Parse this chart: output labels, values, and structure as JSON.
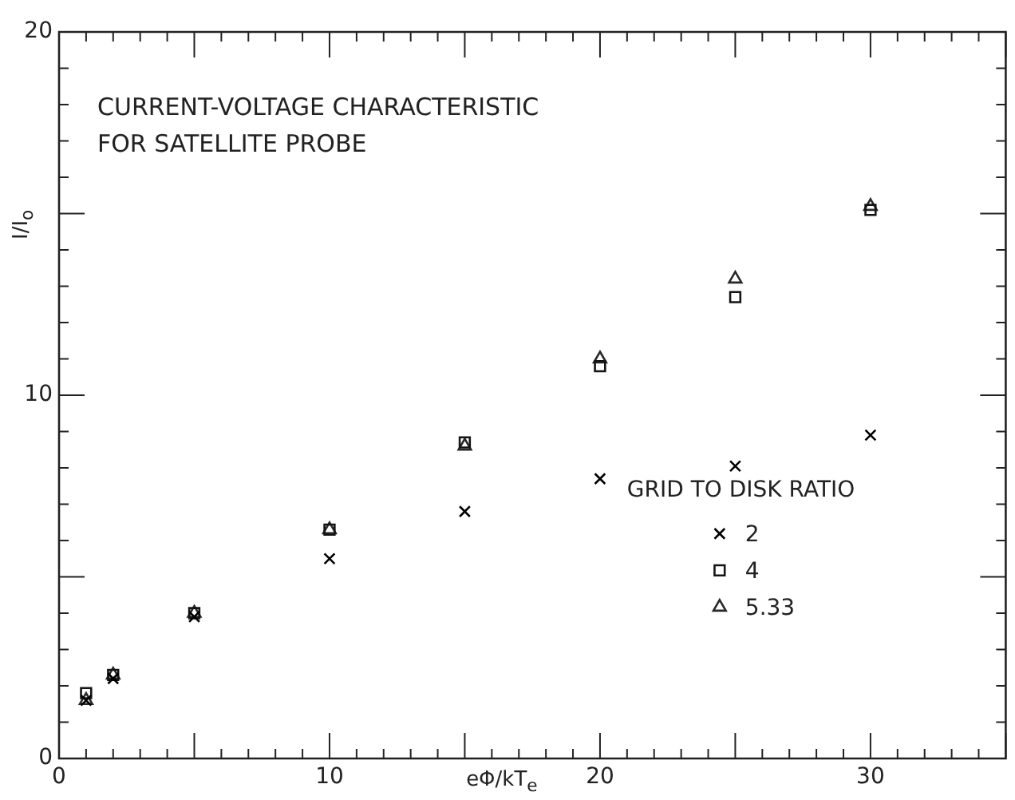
{
  "chart_data": {
    "type": "scatter",
    "title": "CURRENT-VOLTAGE CHARACTERISTIC\nFOR SATELLITE PROBE",
    "xlabel": "eΦ/kT$_{e}$",
    "ylabel": "I/I$_{o}$",
    "legend_title": "GRID TO DISK RATIO",
    "legend": "bottom right",
    "grid": false,
    "x": [
      1,
      2,
      5,
      10,
      15,
      20,
      25,
      30
    ],
    "series": [
      {
        "name": "2",
        "color": "#000000",
        "marker": "cross",
        "values": [
          1.6,
          2.2,
          3.9,
          5.5,
          6.8,
          7.7,
          8.05,
          8.9
        ]
      },
      {
        "name": "4",
        "color": "#141414",
        "marker": "square",
        "values": [
          1.8,
          2.3,
          4.0,
          6.3,
          8.7,
          10.8,
          12.7,
          15.1
        ]
      },
      {
        "name": "5.33",
        "color": "#282828",
        "marker": "triangle",
        "values": [
          1.6,
          2.3,
          4.0,
          6.3,
          8.6,
          11.0,
          13.2,
          15.2
        ]
      }
    ],
    "xlim": [
      0,
      35
    ],
    "xticks": [
      0,
      {
        "value": 1,
        "label": null
      },
      {
        "value": 2,
        "label": null
      },
      {
        "value": 3,
        "label": null
      },
      {
        "value": 4,
        "label": null
      },
      {
        "value": 5,
        "label": null
      },
      {
        "value": 6,
        "label": null
      },
      {
        "value": 7,
        "label": null
      },
      {
        "value": 8,
        "label": null
      },
      {
        "value": 9,
        "label": null
      },
      10,
      {
        "value": 11,
        "label": null
      },
      {
        "value": 12,
        "label": null
      },
      {
        "value": 13,
        "label": null
      },
      {
        "value": 14,
        "label": null
      },
      {
        "value": 15,
        "label": null
      },
      {
        "value": 16,
        "label": null
      },
      {
        "value": 17,
        "label": null
      },
      {
        "value": 18,
        "label": null
      },
      {
        "value": 19,
        "label": null
      },
      20,
      {
        "value": 21,
        "label": null
      },
      {
        "value": 22,
        "label": null
      },
      {
        "value": 23,
        "label": null
      },
      {
        "value": 24,
        "label": null
      },
      {
        "value": 25,
        "label": null
      },
      {
        "value": 26,
        "label": null
      },
      {
        "value": 27,
        "label": null
      },
      {
        "value": 28,
        "label": null
      },
      {
        "value": 29,
        "label": null
      },
      30,
      {
        "value": 31,
        "label": null
      },
      {
        "value": 32,
        "label": null
      },
      {
        "value": 33,
        "label": null
      },
      {
        "value": 34,
        "label": null
      },
      {
        "value": 35,
        "label": null
      }
    ],
    "ylim": [
      0,
      20
    ],
    "yticks": [
      0,
      {
        "value": 1,
        "label": null
      },
      {
        "value": 2,
        "label": null
      },
      {
        "value": 3,
        "label": null
      },
      {
        "value": 4,
        "label": null
      },
      {
        "value": 5,
        "label": null
      },
      {
        "value": 6,
        "label": null
      },
      {
        "value": 7,
        "label": null
      },
      {
        "value": 8,
        "label": null
      },
      {
        "value": 9,
        "label": null
      },
      10,
      {
        "value": 11,
        "label": null
      },
      {
        "value": 12,
        "label": null
      },
      {
        "value": 13,
        "label": null
      },
      {
        "value": 14,
        "label": null
      },
      {
        "value": 15,
        "label": null
      },
      {
        "value": 16,
        "label": null
      },
      {
        "value": 17,
        "label": null
      },
      {
        "value": 18,
        "label": null
      },
      {
        "value": 19,
        "label": null
      },
      20
    ]
  }
}
